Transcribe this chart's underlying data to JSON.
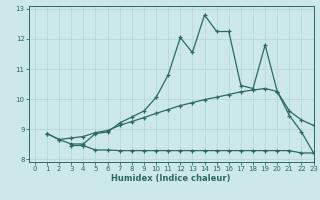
{
  "xlabel": "Humidex (Indice chaleur)",
  "xlim": [
    -0.5,
    23
  ],
  "ylim": [
    7.9,
    13.1
  ],
  "xticks": [
    0,
    1,
    2,
    3,
    4,
    5,
    6,
    7,
    8,
    9,
    10,
    11,
    12,
    13,
    14,
    15,
    16,
    17,
    18,
    19,
    20,
    21,
    22,
    23
  ],
  "yticks": [
    8,
    9,
    10,
    11,
    12,
    13
  ],
  "bg_color": "#cde8e8",
  "grid_color": "#b8d8d8",
  "line_color": "#2a6b60",
  "line1_x": [
    1,
    2,
    3,
    4,
    5,
    6,
    7,
    8,
    9,
    10,
    11,
    12,
    13,
    14,
    15,
    16,
    17,
    18,
    19,
    20,
    21,
    22,
    23
  ],
  "line1_y": [
    8.85,
    8.65,
    8.5,
    8.5,
    8.85,
    8.9,
    9.2,
    9.4,
    9.6,
    10.05,
    10.8,
    12.05,
    11.55,
    12.8,
    12.25,
    12.25,
    10.45,
    10.35,
    11.8,
    10.25,
    9.45,
    8.9,
    8.2
  ],
  "line2_x": [
    3,
    4,
    5,
    6,
    7,
    8,
    9,
    10,
    11,
    12,
    13,
    14,
    15,
    16,
    17,
    18,
    19,
    20,
    21,
    22,
    23
  ],
  "line2_y": [
    8.45,
    8.45,
    8.3,
    8.3,
    8.28,
    8.28,
    8.28,
    8.28,
    8.28,
    8.28,
    8.28,
    8.28,
    8.28,
    8.28,
    8.28,
    8.28,
    8.28,
    8.28,
    8.28,
    8.2,
    8.2
  ],
  "line3_x": [
    1,
    2,
    3,
    4,
    5,
    6,
    7,
    8,
    9,
    10,
    11,
    12,
    13,
    14,
    15,
    16,
    17,
    18,
    19,
    20,
    21,
    22,
    23
  ],
  "line3_y": [
    8.85,
    8.65,
    8.7,
    8.75,
    8.88,
    8.95,
    9.12,
    9.25,
    9.38,
    9.52,
    9.65,
    9.78,
    9.88,
    9.98,
    10.06,
    10.15,
    10.24,
    10.3,
    10.35,
    10.25,
    9.6,
    9.3,
    9.12
  ]
}
